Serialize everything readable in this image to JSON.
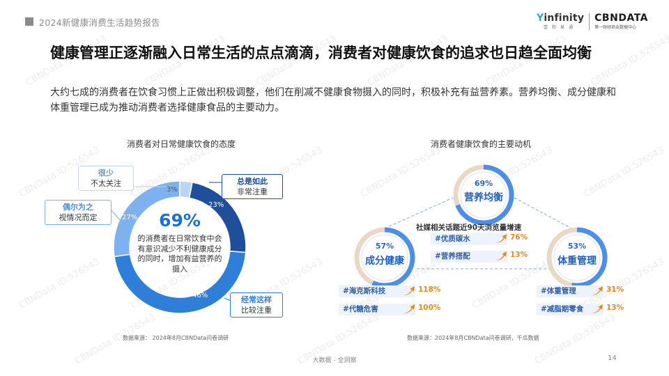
{
  "header": {
    "report_name": "2024新健康消费生活趋势报告"
  },
  "logos": {
    "infinity_name_prefix": "Y",
    "infinity_name": "infinity",
    "infinity_sub": "壹　和　易　通",
    "cbndata_name": "CBNDATA",
    "cbndata_sub": "第一财经商业数据中心"
  },
  "title": "健康管理正逐渐融入日常生活的点点滴滴，消费者对健康饮食的追求也日趋全面均衡",
  "intro": "大约七成的消费者在饮食习惯上正做出积极调整，他们在削减不健康食物摄入的同时，积极补充有益营养素。营养均衡、成分健康和体重管理已成为推动消费者选择健康食品的主要动力。",
  "left_chart": {
    "title": "消费者对日常健康饮食的态度",
    "center_value": "69%",
    "center_text": "的消费者在日常饮食中会有意识减少不利健康成分的同时，增加有益营养的摄入",
    "source": "数据来源：   2024年8月CBNData问卷调研"
  },
  "chart_data": {
    "type": "pie",
    "title": "消费者对日常健康饮食的态度",
    "categories": [
      "总是如此 非常注重",
      "经常这样 比较注重",
      "偶尔为之 视情况而定",
      "很少 不太关注"
    ],
    "values": [
      23,
      46,
      27,
      3
    ],
    "value_labels": [
      "23%",
      "46%",
      "27%",
      "3%"
    ],
    "colors": [
      "#1f4e9a",
      "#2f7fd8",
      "#7db2ee",
      "#bcd6f2"
    ],
    "legend": [
      {
        "bold": "总是如此",
        "sub": "非常注重"
      },
      {
        "bold": "经常这样",
        "sub": "比较注重"
      },
      {
        "bold": "偶尔为之",
        "sub": "视情况而定"
      },
      {
        "bold": "很少",
        "sub": "不太关注"
      }
    ]
  },
  "right_chart": {
    "title": "消费者健康饮食的主要动机",
    "subtitle": "社媒相关话题近90天浏览量增速",
    "source": "数据来源：2024年8月CBNData问卷调研，千瓜数据",
    "motives": [
      {
        "pct": "69%",
        "label": "营养均衡",
        "value": 69
      },
      {
        "pct": "57%",
        "label": "成分健康",
        "value": 57
      },
      {
        "pct": "53%",
        "label": "体重管理",
        "value": 53
      }
    ],
    "tags": [
      {
        "name": "#优质碳水",
        "growth": "76%"
      },
      {
        "name": "#营养搭配",
        "growth": "13%"
      },
      {
        "name": "#海克斯科技",
        "growth": "118%"
      },
      {
        "name": "#代糖危害",
        "growth": "100%"
      },
      {
        "name": "#体重管理",
        "growth": "31%"
      },
      {
        "name": "#减脂期零食",
        "growth": "13%"
      }
    ]
  },
  "footer": {
    "text": "大数据 - 全洞察",
    "page": "14"
  },
  "watermark": "CBNData ID:526543",
  "colors": {
    "accent": "#1f6fd0",
    "dark_blue": "#1f4e9a",
    "orange": "#e5891e"
  }
}
